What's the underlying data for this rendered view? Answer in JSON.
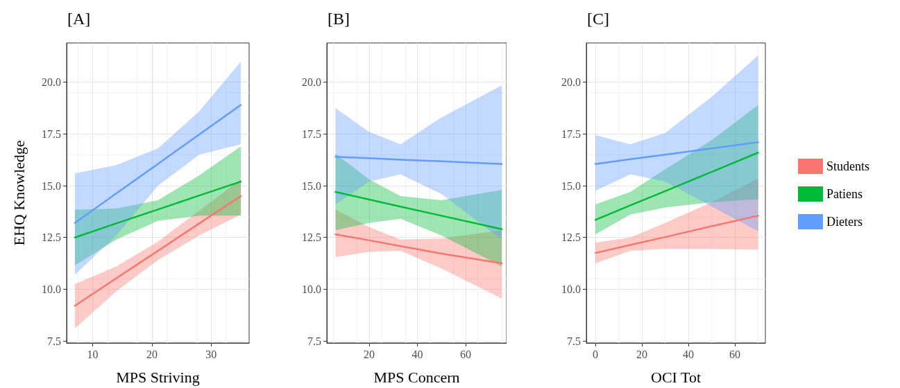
{
  "chart_data": [
    {
      "type": "line",
      "title": "[A]",
      "xlabel": "MPS Striving",
      "ylabel": "EHQ Knowledge",
      "xlim": [
        5.6,
        36.4
      ],
      "xticks": [
        10,
        20,
        30
      ],
      "ylim": [
        7.4,
        21.9
      ],
      "yticks": [
        7.5,
        {
          "value": 10,
          "label": "10.0"
        },
        12.5,
        {
          "value": 15,
          "label": "15.0"
        },
        17.5,
        {
          "value": 20,
          "label": "20.0"
        }
      ],
      "grid": true,
      "legend": false,
      "marker": "none",
      "line_style": "solid",
      "series": [
        {
          "color": "#f8766d",
          "x": [
            7,
            14,
            21,
            28,
            35
          ],
          "values": [
            9.2,
            10.53,
            11.85,
            13.18,
            14.5
          ],
          "lower": [
            8.1,
            9.9,
            11.4,
            12.6,
            13.6
          ],
          "upper": [
            10.25,
            11.1,
            12.3,
            13.8,
            15.3
          ]
        },
        {
          "color": "#00ba38",
          "x": [
            7,
            14,
            21,
            28,
            35
          ],
          "values": [
            12.5,
            13.18,
            13.85,
            14.53,
            15.2
          ],
          "lower": [
            11.15,
            12.4,
            13.3,
            13.55,
            13.55
          ],
          "upper": [
            13.85,
            13.9,
            14.3,
            15.5,
            16.9
          ]
        },
        {
          "color": "#619cff",
          "x": [
            7,
            14,
            21,
            28,
            35
          ],
          "values": [
            13.2,
            14.63,
            16.05,
            17.48,
            18.9
          ],
          "lower": [
            10.7,
            12.6,
            15.0,
            16.5,
            17.0
          ],
          "upper": [
            15.6,
            16.0,
            16.8,
            18.6,
            21.0
          ]
        }
      ]
    },
    {
      "type": "line",
      "title": "[B]",
      "xlabel": "MPS Concern",
      "xlim": [
        2.4,
        77
      ],
      "xticks": [
        20,
        40,
        60
      ],
      "ylim": [
        7.4,
        21.9
      ],
      "yticks": [
        7.5,
        {
          "value": 10,
          "label": "10.0"
        },
        12.5,
        {
          "value": 15,
          "label": "15.0"
        },
        17.5,
        {
          "value": 20,
          "label": "20.0"
        }
      ],
      "grid": true,
      "legend": false,
      "marker": "none",
      "line_style": "solid",
      "series": [
        {
          "color": "#f8766d",
          "x": [
            6,
            20,
            33,
            50,
            75
          ],
          "values": [
            12.65,
            12.36,
            12.08,
            11.72,
            11.25
          ],
          "lower": [
            11.55,
            11.8,
            11.85,
            11.0,
            9.55
          ],
          "upper": [
            13.85,
            13.0,
            12.4,
            12.45,
            12.85
          ]
        },
        {
          "color": "#00ba38",
          "x": [
            6,
            20,
            33,
            50,
            75
          ],
          "values": [
            14.7,
            14.33,
            13.99,
            13.55,
            12.9
          ],
          "lower": [
            12.85,
            13.2,
            13.4,
            12.6,
            11.1
          ],
          "upper": [
            16.55,
            15.3,
            14.5,
            14.3,
            14.8
          ]
        },
        {
          "color": "#619cff",
          "x": [
            6,
            20,
            33,
            50,
            75
          ],
          "values": [
            16.4,
            16.33,
            16.26,
            16.18,
            16.05
          ],
          "lower": [
            14.1,
            15.2,
            15.55,
            14.6,
            12.4
          ],
          "upper": [
            18.75,
            17.6,
            17.0,
            18.3,
            19.85
          ]
        }
      ]
    },
    {
      "type": "line",
      "title": "[C]",
      "xlabel": "OCI Tot",
      "xlim": [
        -3.9,
        73.1
      ],
      "xticks": [
        0,
        20,
        40,
        60
      ],
      "ylim": [
        7.4,
        21.9
      ],
      "yticks": [
        7.5,
        {
          "value": 10,
          "label": "10.0"
        },
        12.5,
        {
          "value": 15,
          "label": "15.0"
        },
        17.5,
        {
          "value": 20,
          "label": "20.0"
        }
      ],
      "grid": true,
      "legend": "right",
      "marker": "none",
      "line_style": "solid",
      "series": [
        {
          "name": "Students",
          "color": "#f8766d",
          "x": [
            0,
            15,
            30,
            50,
            70
          ],
          "values": [
            11.75,
            12.14,
            12.52,
            13.04,
            13.55
          ],
          "lower": [
            11.25,
            11.85,
            11.95,
            11.95,
            11.9
          ],
          "upper": [
            12.25,
            12.5,
            13.2,
            14.2,
            15.35
          ]
        },
        {
          "name": "Patiens",
          "color": "#00ba38",
          "x": [
            0,
            15,
            30,
            50,
            70
          ],
          "values": [
            13.35,
            14.05,
            14.74,
            15.67,
            16.6
          ],
          "lower": [
            12.65,
            13.6,
            13.95,
            14.2,
            14.35
          ],
          "upper": [
            14.1,
            14.7,
            15.8,
            17.2,
            18.9
          ]
        },
        {
          "name": "Dieters",
          "color": "#619cff",
          "x": [
            0,
            15,
            30,
            50,
            70
          ],
          "values": [
            16.05,
            16.28,
            16.5,
            16.8,
            17.1
          ],
          "lower": [
            14.75,
            15.55,
            15.2,
            14.0,
            12.8
          ],
          "upper": [
            17.45,
            17.0,
            17.55,
            19.3,
            21.3
          ]
        }
      ]
    }
  ]
}
